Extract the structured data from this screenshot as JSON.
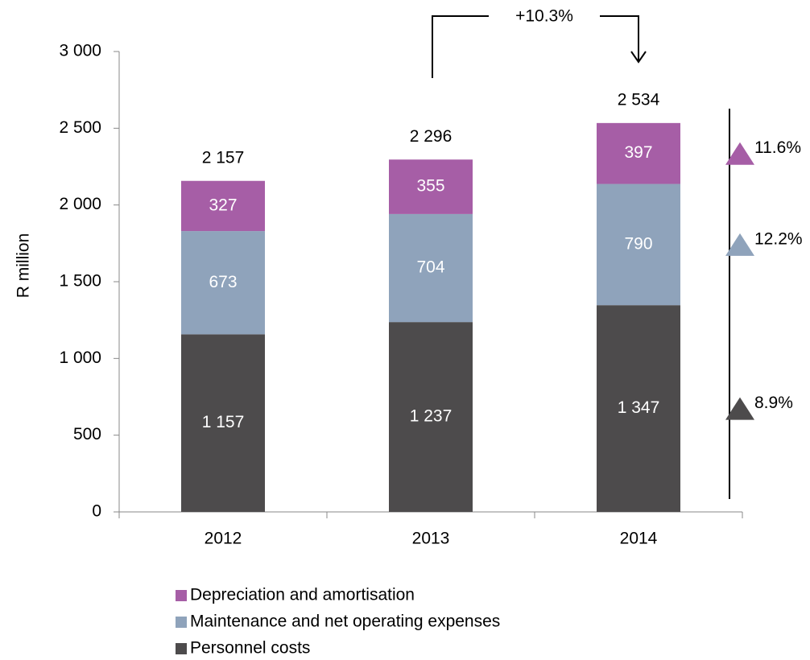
{
  "chart_data": {
    "type": "stacked_bar",
    "y_label": "R million",
    "categories": [
      "2012",
      "2013",
      "2014"
    ],
    "series": [
      {
        "name": "Personnel costs",
        "color": "#4d4b4c",
        "values": [
          1157,
          1237,
          1347
        ],
        "value_labels": [
          "1 157",
          "1 237",
          "1 347"
        ],
        "change": "8.9%"
      },
      {
        "name": "Maintenance and net operating expenses",
        "color": "#8fa3bb",
        "values": [
          673,
          704,
          790
        ],
        "change": "12.2%"
      },
      {
        "name": "Depreciation and amortisation",
        "color": "#a65ea6",
        "values": [
          327,
          355,
          397
        ],
        "change": "11.6%"
      }
    ],
    "totals": [
      2157,
      2296,
      2534
    ],
    "total_labels": [
      "2 157",
      "2 296",
      "2 534"
    ],
    "annotation": "+10.3%",
    "ylim": [
      0,
      3000
    ],
    "yticks": [
      0,
      500,
      {
        "value": 1000,
        "label": "1 000"
      },
      {
        "value": 1500,
        "label": "1 500"
      },
      {
        "value": 2000,
        "label": "2 000"
      },
      {
        "value": 2500,
        "label": "2 500"
      },
      {
        "value": 3000,
        "label": "3 000"
      }
    ],
    "grid": false
  }
}
